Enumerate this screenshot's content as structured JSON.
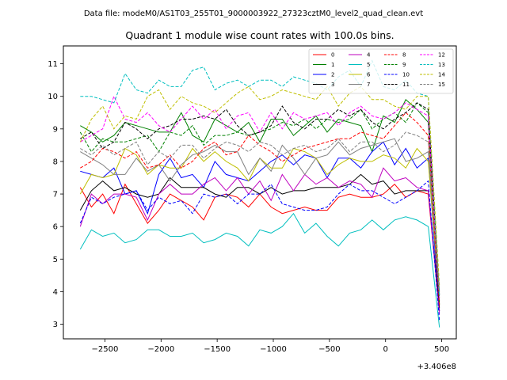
{
  "suptitle": "Data file: modeM0/AS1T03_255T01_9000003922_27323cztM0_level2_quad_clean.evt",
  "chart_data": {
    "type": "line",
    "title": "Quadrant 1 module wise count rates with 100.0s bins.",
    "xlabel": "",
    "ylabel": "",
    "x_offset_label": "+3.406e8",
    "xlim": [
      -2870,
      630
    ],
    "ylim": [
      2.55,
      11.55
    ],
    "x_ticks": [
      -2500,
      -2000,
      -1500,
      -1000,
      -500,
      0,
      500
    ],
    "x_tick_labels": [
      "−2500",
      "−2000",
      "−1500",
      "−1000",
      "−500",
      "0",
      "500"
    ],
    "y_ticks": [
      3,
      4,
      5,
      6,
      7,
      8,
      9,
      10,
      11
    ],
    "y_tick_labels": [
      "3",
      "4",
      "5",
      "6",
      "7",
      "8",
      "9",
      "10",
      "11"
    ],
    "legend_position": "top-right",
    "x": [
      -2720,
      -2620,
      -2520,
      -2420,
      -2320,
      -2220,
      -2120,
      -2020,
      -1920,
      -1820,
      -1720,
      -1620,
      -1520,
      -1420,
      -1320,
      -1220,
      -1120,
      -1020,
      -920,
      -820,
      -720,
      -620,
      -520,
      -420,
      -320,
      -220,
      -120,
      -20,
      80,
      180,
      280,
      380,
      480
    ],
    "series": [
      {
        "name": "0",
        "color": "#ff0000",
        "dash": "solid",
        "values": [
          7.2,
          6.6,
          7.0,
          6.4,
          7.3,
          6.7,
          6.1,
          6.5,
          7.0,
          6.8,
          6.6,
          6.2,
          6.9,
          7.0,
          6.9,
          6.6,
          7.0,
          6.6,
          6.4,
          6.5,
          6.6,
          6.5,
          6.5,
          6.9,
          7.0,
          6.9,
          6.9,
          7.0,
          7.3,
          6.9,
          7.1,
          7.0,
          3.4
        ]
      },
      {
        "name": "1",
        "color": "#008000",
        "dash": "solid",
        "values": [
          9.1,
          8.9,
          8.6,
          8.8,
          9.2,
          9.1,
          9.0,
          8.9,
          8.9,
          9.5,
          8.8,
          8.6,
          9.3,
          9.1,
          8.9,
          9.2,
          8.6,
          9.3,
          9.3,
          8.8,
          9.1,
          9.4,
          8.9,
          9.3,
          9.2,
          9.1,
          8.3,
          9.4,
          9.2,
          9.9,
          9.6,
          9.2,
          3.6
        ]
      },
      {
        "name": "2",
        "color": "#0000ff",
        "dash": "solid",
        "values": [
          7.7,
          7.6,
          7.5,
          7.8,
          7.0,
          7.1,
          6.4,
          7.6,
          8.1,
          7.5,
          7.6,
          7.2,
          8.0,
          7.6,
          7.5,
          7.4,
          7.7,
          8.0,
          8.2,
          7.9,
          8.2,
          8.1,
          7.5,
          8.1,
          8.1,
          7.8,
          8.3,
          8.6,
          7.9,
          8.4,
          7.8,
          8.1,
          3.4
        ]
      },
      {
        "name": "3",
        "color": "#000000",
        "dash": "solid",
        "values": [
          6.5,
          7.1,
          7.4,
          7.1,
          7.2,
          7.0,
          6.9,
          7.0,
          7.5,
          7.2,
          7.2,
          7.2,
          7.0,
          6.9,
          7.2,
          7.2,
          7.0,
          7.2,
          7.0,
          7.1,
          7.1,
          7.2,
          7.2,
          7.2,
          7.3,
          7.6,
          7.3,
          7.4,
          7.0,
          7.1,
          7.1,
          7.1,
          3.5
        ]
      },
      {
        "name": "4",
        "color": "#bf00bf",
        "dash": "solid",
        "values": [
          6.0,
          7.0,
          6.7,
          7.0,
          7.0,
          6.9,
          6.2,
          7.0,
          7.3,
          7.0,
          7.0,
          7.3,
          7.5,
          7.1,
          7.5,
          7.0,
          7.4,
          6.8,
          7.6,
          7.1,
          7.6,
          7.3,
          7.5,
          7.2,
          7.4,
          7.3,
          6.9,
          7.8,
          7.4,
          7.5,
          7.2,
          7.1,
          3.3
        ]
      },
      {
        "name": "5",
        "color": "#00bfbf",
        "dash": "solid",
        "values": [
          5.3,
          5.9,
          5.7,
          5.8,
          5.5,
          5.6,
          5.9,
          5.9,
          5.7,
          5.7,
          5.8,
          5.5,
          5.6,
          5.8,
          5.7,
          5.4,
          5.9,
          5.8,
          6.0,
          6.4,
          5.8,
          6.1,
          5.7,
          5.4,
          5.8,
          5.9,
          6.2,
          5.9,
          6.2,
          6.3,
          6.2,
          6.0,
          2.9
        ]
      },
      {
        "name": "6",
        "color": "#bfbf00",
        "dash": "solid",
        "values": [
          7.0,
          7.6,
          7.5,
          7.6,
          8.4,
          8.2,
          7.6,
          7.9,
          7.8,
          7.8,
          8.4,
          8.0,
          8.3,
          8.0,
          7.8,
          7.4,
          8.1,
          7.8,
          7.8,
          8.4,
          8.3,
          8.1,
          7.6,
          7.9,
          8.1,
          8.0,
          8.0,
          8.2,
          8.1,
          7.8,
          8.4,
          8.0,
          3.8
        ]
      },
      {
        "name": "7",
        "color": "#808080",
        "dash": "solid",
        "values": [
          8.3,
          8.1,
          7.9,
          7.6,
          7.6,
          8.1,
          7.7,
          7.9,
          7.4,
          7.9,
          8.2,
          8.3,
          8.5,
          8.3,
          8.3,
          7.6,
          8.1,
          7.7,
          8.5,
          8.1,
          7.6,
          8.1,
          8.2,
          8.6,
          8.2,
          8.4,
          8.5,
          8.6,
          8.7,
          8.0,
          8.1,
          8.3,
          4.0
        ]
      },
      {
        "name": "8",
        "color": "#ff0000",
        "dash": "dashed",
        "values": [
          7.8,
          8.0,
          8.4,
          8.3,
          8.1,
          8.3,
          7.8,
          7.9,
          8.2,
          7.8,
          8.0,
          8.4,
          8.6,
          8.2,
          8.3,
          8.8,
          8.5,
          8.3,
          8.0,
          8.2,
          8.4,
          8.5,
          8.6,
          8.7,
          8.7,
          8.9,
          8.8,
          8.7,
          9.1,
          9.5,
          9.2,
          8.8,
          3.6
        ]
      },
      {
        "name": "9",
        "color": "#008000",
        "dash": "dashed",
        "values": [
          8.9,
          8.3,
          8.7,
          8.6,
          8.6,
          8.7,
          8.8,
          8.3,
          8.9,
          8.8,
          9.1,
          8.5,
          8.8,
          8.8,
          8.9,
          8.8,
          8.9,
          9.0,
          9.2,
          9.1,
          9.3,
          9.0,
          9.3,
          9.2,
          9.3,
          9.6,
          9.0,
          9.3,
          9.5,
          9.2,
          9.8,
          9.5,
          3.7
        ]
      },
      {
        "name": "10",
        "color": "#0000ff",
        "dash": "dashed",
        "values": [
          6.1,
          6.9,
          6.7,
          6.9,
          7.0,
          7.1,
          6.5,
          6.9,
          6.7,
          6.8,
          6.4,
          7.0,
          6.9,
          7.0,
          6.7,
          7.0,
          7.0,
          7.3,
          6.7,
          6.6,
          6.5,
          6.5,
          6.6,
          7.0,
          7.3,
          7.1,
          7.1,
          6.9,
          6.7,
          6.9,
          7.1,
          7.4,
          3.1
        ]
      },
      {
        "name": "11",
        "color": "#000000",
        "dash": "dashed",
        "values": [
          8.7,
          8.9,
          8.4,
          8.6,
          9.2,
          9.0,
          8.7,
          9.0,
          9.1,
          9.3,
          9.3,
          9.4,
          9.3,
          9.6,
          9.1,
          8.8,
          8.9,
          9.1,
          9.7,
          9.2,
          9.0,
          9.3,
          9.3,
          9.6,
          9.4,
          9.6,
          9.2,
          9.0,
          9.3,
          9.5,
          9.8,
          9.6,
          3.9
        ]
      },
      {
        "name": "12",
        "color": "#ff00ff",
        "dash": "dashed",
        "values": [
          8.6,
          8.8,
          9.0,
          10.0,
          9.3,
          9.2,
          9.5,
          9.1,
          8.9,
          9.3,
          9.7,
          9.3,
          9.6,
          9.0,
          9.4,
          9.5,
          8.9,
          9.5,
          9.0,
          9.5,
          9.3,
          9.4,
          9.5,
          9.1,
          9.5,
          9.7,
          9.4,
          9.3,
          9.5,
          9.8,
          9.6,
          9.4,
          3.8
        ]
      },
      {
        "name": "13",
        "color": "#00bfbf",
        "dash": "dashed",
        "values": [
          10.0,
          10.0,
          9.9,
          9.8,
          10.7,
          10.2,
          10.1,
          10.5,
          10.3,
          10.3,
          10.8,
          10.9,
          10.2,
          10.4,
          10.5,
          10.3,
          10.5,
          10.5,
          10.3,
          10.6,
          10.5,
          10.4,
          10.2,
          10.6,
          10.8,
          10.3,
          11.1,
          10.3,
          10.2,
          10.5,
          10.1,
          10.0,
          3.9
        ]
      },
      {
        "name": "14",
        "color": "#bfbf00",
        "dash": "dashed",
        "values": [
          8.6,
          9.3,
          9.7,
          9.0,
          9.4,
          9.3,
          10.0,
          10.2,
          9.6,
          10.0,
          9.8,
          9.7,
          9.5,
          9.8,
          10.1,
          10.3,
          9.9,
          10.0,
          10.2,
          10.1,
          10.0,
          9.9,
          10.3,
          9.7,
          10.1,
          10.3,
          9.9,
          9.9,
          9.7,
          9.6,
          10.0,
          10.0,
          4.2
        ]
      },
      {
        "name": "15",
        "color": "#808080",
        "dash": "dashed",
        "values": [
          8.4,
          8.2,
          8.5,
          8.2,
          8.4,
          8.6,
          7.9,
          8.3,
          8.1,
          8.5,
          8.5,
          8.1,
          8.4,
          8.6,
          8.5,
          8.3,
          8.6,
          8.5,
          8.2,
          8.4,
          8.5,
          8.3,
          8.4,
          8.7,
          8.3,
          8.6,
          8.6,
          8.3,
          8.5,
          8.9,
          8.8,
          8.6,
          4.0
        ]
      }
    ]
  }
}
